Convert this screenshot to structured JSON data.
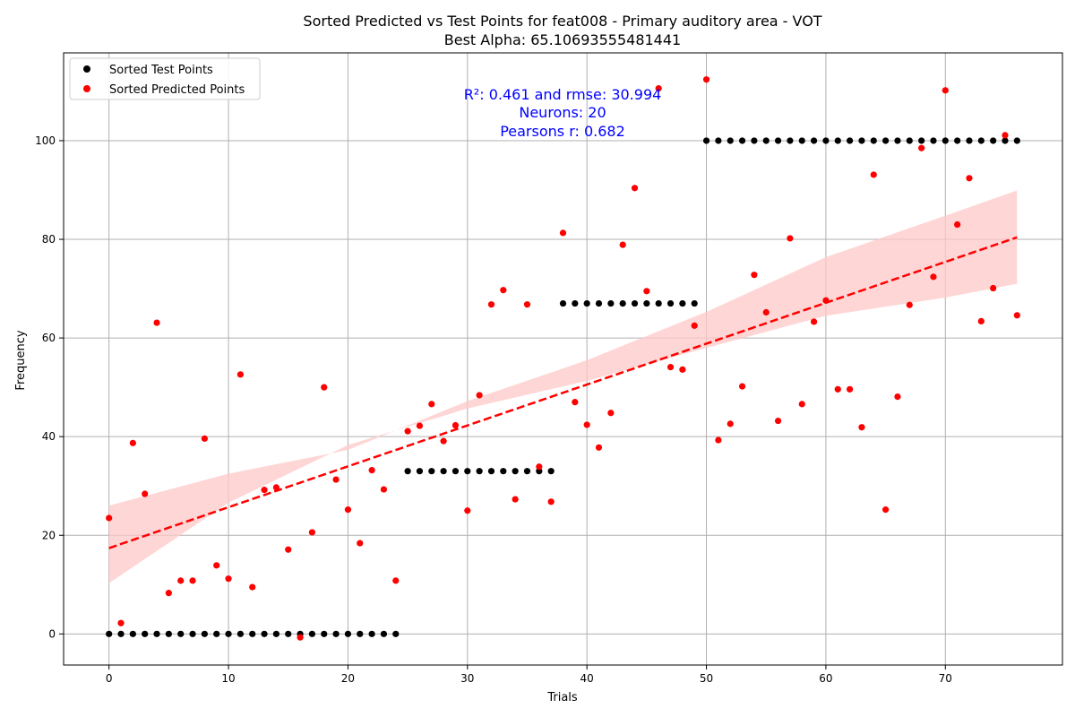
{
  "chart_data": {
    "type": "scatter",
    "title": "Sorted Predicted vs Test Points for feat008 - Primary auditory area - VOT",
    "subtitle": "Best Alpha: 65.10693555481441",
    "xlabel": "Trials",
    "ylabel": "Frequency",
    "xlim": [
      -3.8,
      79.8
    ],
    "ylim": [
      -6.3,
      117.8
    ],
    "x_ticks": [
      0,
      10,
      20,
      30,
      40,
      50,
      60,
      70
    ],
    "y_ticks": [
      0,
      20,
      40,
      60,
      80,
      100
    ],
    "grid": true,
    "legend_position": "top-left",
    "annotations": [
      "R²: 0.461 and rmse: 30.994",
      "Neurons: 20",
      "Pearsons r: 0.682"
    ],
    "series": [
      {
        "name": "Sorted Test Points",
        "color": "#000000",
        "x": [
          0,
          1,
          2,
          3,
          4,
          5,
          6,
          7,
          8,
          9,
          10,
          11,
          12,
          13,
          14,
          15,
          16,
          17,
          18,
          19,
          20,
          21,
          22,
          23,
          24,
          25,
          26,
          27,
          28,
          29,
          30,
          31,
          32,
          33,
          34,
          35,
          36,
          37,
          38,
          39,
          40,
          41,
          42,
          43,
          44,
          45,
          46,
          47,
          48,
          49,
          50,
          51,
          52,
          53,
          54,
          55,
          56,
          57,
          58,
          59,
          60,
          61,
          62,
          63,
          64,
          65,
          66,
          67,
          68,
          69,
          70,
          71,
          72,
          73,
          74,
          75,
          76
        ],
        "y": [
          0,
          0,
          0,
          0,
          0,
          0,
          0,
          0,
          0,
          0,
          0,
          0,
          0,
          0,
          0,
          0,
          0,
          0,
          0,
          0,
          0,
          0,
          0,
          0,
          0,
          33,
          33,
          33,
          33,
          33,
          33,
          33,
          33,
          33,
          33,
          33,
          33,
          33,
          67,
          67,
          67,
          67,
          67,
          67,
          67,
          67,
          67,
          67,
          67,
          67,
          100,
          100,
          100,
          100,
          100,
          100,
          100,
          100,
          100,
          100,
          100,
          100,
          100,
          100,
          100,
          100,
          100,
          100,
          100,
          100,
          100,
          100,
          100,
          100,
          100,
          100,
          100
        ]
      },
      {
        "name": "Sorted Predicted Points",
        "color": "#ff0000",
        "x": [
          0,
          1,
          2,
          3,
          4,
          5,
          6,
          7,
          8,
          9,
          10,
          11,
          12,
          13,
          14,
          15,
          16,
          17,
          18,
          19,
          20,
          21,
          22,
          23,
          24,
          25,
          26,
          27,
          28,
          29,
          30,
          31,
          32,
          33,
          34,
          35,
          36,
          37,
          38,
          39,
          40,
          41,
          42,
          43,
          44,
          45,
          46,
          47,
          48,
          49,
          50,
          51,
          52,
          53,
          54,
          55,
          56,
          57,
          58,
          59,
          60,
          61,
          62,
          63,
          64,
          65,
          66,
          67,
          68,
          69,
          70,
          71,
          72,
          73,
          74,
          75,
          76
        ],
        "y": [
          23.5,
          2.2,
          38.7,
          28.4,
          63.1,
          8.3,
          10.8,
          10.8,
          39.6,
          13.9,
          11.2,
          52.6,
          9.5,
          29.2,
          29.7,
          17.1,
          -0.7,
          20.6,
          50.0,
          31.3,
          25.2,
          18.4,
          33.2,
          29.3,
          10.8,
          41.1,
          42.2,
          46.6,
          39.1,
          42.3,
          25.0,
          48.4,
          66.8,
          69.7,
          27.3,
          66.8,
          33.9,
          26.8,
          81.3,
          47.0,
          42.4,
          37.8,
          44.8,
          78.9,
          90.4,
          69.5,
          110.6,
          54.1,
          53.6,
          62.5,
          112.4,
          39.3,
          42.6,
          50.2,
          72.8,
          65.2,
          43.2,
          80.2,
          46.6,
          63.3,
          67.6,
          49.6,
          49.6,
          41.9,
          93.1,
          25.2,
          48.1,
          66.7,
          98.5,
          72.4,
          110.2,
          83.0,
          92.4,
          63.4,
          70.1,
          101.1,
          64.6
        ]
      }
    ],
    "regression": {
      "color": "#ff0000",
      "band_color": "#ffc8c8",
      "line_start": [
        0,
        17.4
      ],
      "line_end": [
        76,
        80.4
      ],
      "band_lower": [
        [
          0,
          10.3
        ],
        [
          10,
          26.6
        ],
        [
          20,
          38.3
        ],
        [
          30,
          45.7
        ],
        [
          40,
          51.3
        ],
        [
          50,
          58.0
        ],
        [
          60,
          64.5
        ],
        [
          70,
          68.2
        ],
        [
          76,
          71.0
        ]
      ],
      "band_upper": [
        [
          0,
          26.0
        ],
        [
          10,
          32.5
        ],
        [
          20,
          37.3
        ],
        [
          30,
          47.2
        ],
        [
          40,
          55.5
        ],
        [
          50,
          65.3
        ],
        [
          60,
          76.4
        ],
        [
          70,
          84.8
        ],
        [
          76,
          89.9
        ]
      ]
    }
  }
}
